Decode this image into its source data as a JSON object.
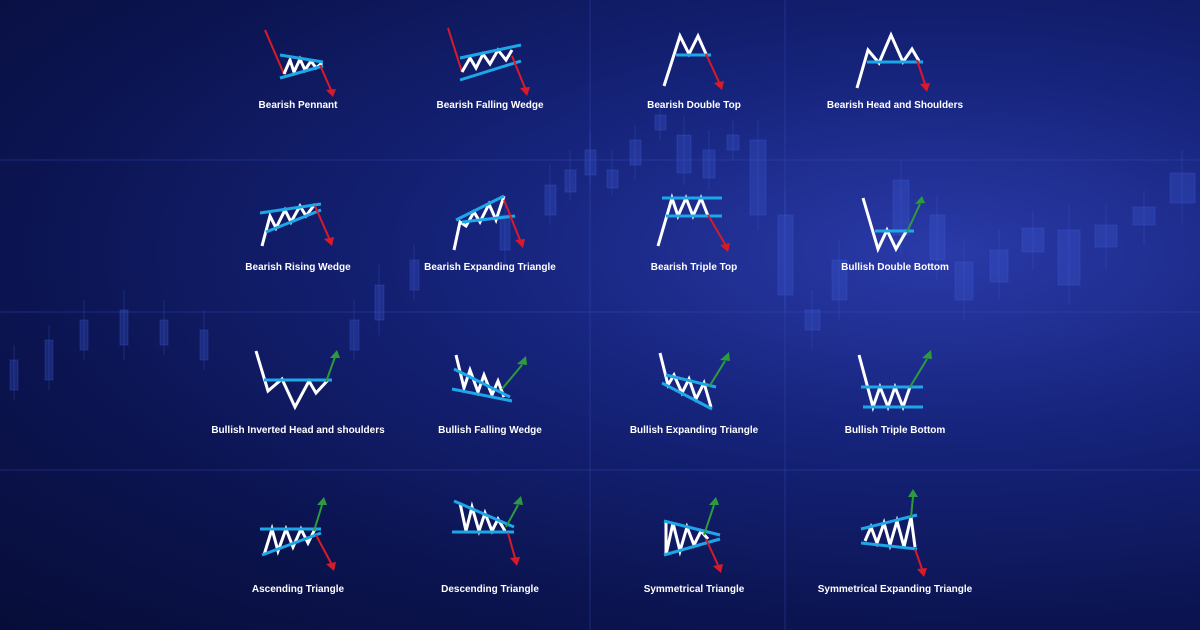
{
  "colors": {
    "background": "#0b1450",
    "pattern_line": "#ffffff",
    "trend_line": "#1ea7e8",
    "bearish_arrow": "#d81b2a",
    "bullish_arrow": "#2e9a3e"
  },
  "patterns": [
    {
      "label": "Bearish Pennant"
    },
    {
      "label": "Bearish Falling Wedge"
    },
    {
      "label": "Bearish Double Top"
    },
    {
      "label": "Bearish Head and Shoulders"
    },
    {
      "label": "Bearish Rising Wedge"
    },
    {
      "label": "Bearish Expanding Triangle"
    },
    {
      "label": "Bearish Triple Top"
    },
    {
      "label": "Bullish Double Bottom"
    },
    {
      "label": "Bullish Inverted Head and shoulders"
    },
    {
      "label": "Bullish Falling Wedge"
    },
    {
      "label": "Bullish Expanding Triangle"
    },
    {
      "label": "Bullish Triple Bottom"
    },
    {
      "label": "Ascending Triangle"
    },
    {
      "label": "Descending Triangle"
    },
    {
      "label": "Symmetrical Triangle"
    },
    {
      "label": "Symmetrical Expanding Triangle"
    }
  ]
}
